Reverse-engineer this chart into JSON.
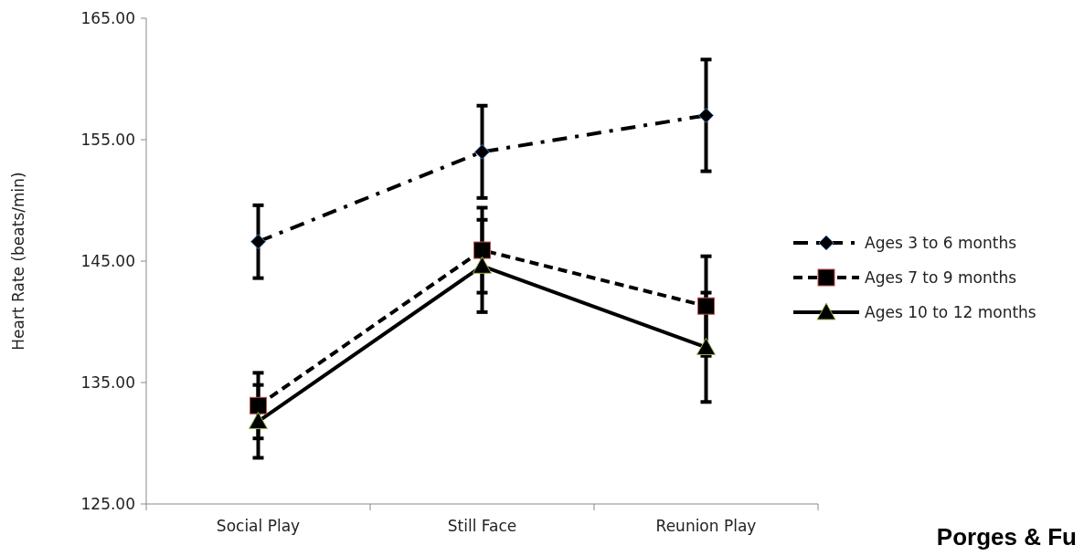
{
  "chart_data": {
    "type": "line",
    "ylabel": "Heart Rate (beats/min)",
    "categories": [
      "Social Play",
      "Still Face",
      "Reunion Play"
    ],
    "ylim": [
      125,
      165
    ],
    "yticks": [
      {
        "value": 125,
        "label": "125.00"
      },
      {
        "value": 135,
        "label": "135.00"
      },
      {
        "value": 145,
        "label": "145.00"
      },
      {
        "value": 155,
        "label": "155.00"
      },
      {
        "value": 165,
        "label": "165.00"
      }
    ],
    "grid": false,
    "legend": "right",
    "series": [
      {
        "name": "Ages 3 to 6 months",
        "color": "#000000",
        "marker": "diamond",
        "line_style": "dashdot",
        "values": [
          146.6,
          154.0,
          157.0
        ],
        "errors": [
          3.0,
          3.8,
          4.6
        ]
      },
      {
        "name": "Ages 7 to 9 months",
        "color": "#000000",
        "marker": "square",
        "line_style": "dashed",
        "values": [
          133.1,
          145.9,
          141.3
        ],
        "errors": [
          2.7,
          3.5,
          4.1
        ]
      },
      {
        "name": "Ages 10 to 12 months",
        "color": "#000000",
        "marker": "triangle",
        "line_style": "solid",
        "values": [
          131.8,
          144.6,
          137.9
        ],
        "errors": [
          3.0,
          3.8,
          4.5
        ]
      }
    ],
    "annotations": [
      "Porges & Fu"
    ]
  }
}
